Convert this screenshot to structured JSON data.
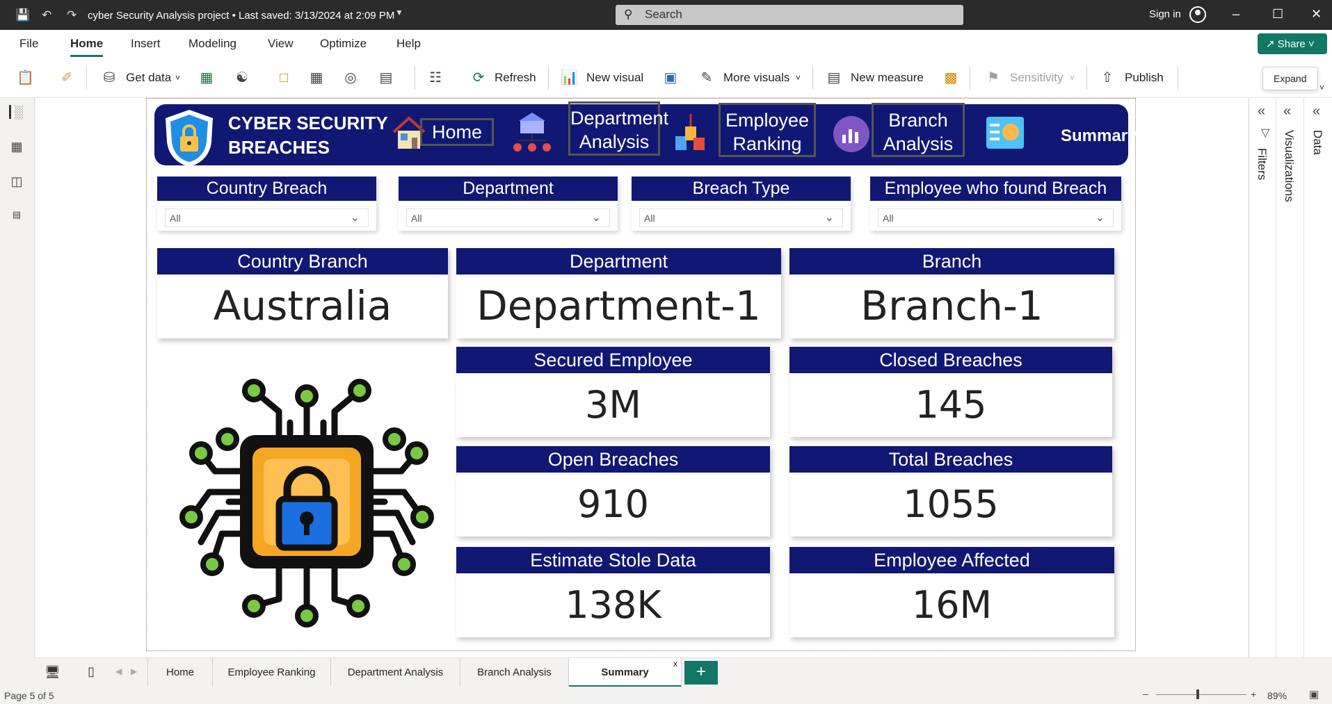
{
  "titlebar": {
    "title": "cyber Security Analysis project • Last saved: 3/13/2024 at 2:09 PM",
    "search_placeholder": "Search",
    "sign_in": "Sign in"
  },
  "menu": [
    "File",
    "Home",
    "Insert",
    "Modeling",
    "View",
    "Optimize",
    "Help"
  ],
  "share_label": "Share",
  "ribbon": {
    "get_data": "Get data",
    "refresh": "Refresh",
    "new_visual": "New visual",
    "more_visuals": "More visuals",
    "new_measure": "New measure",
    "sensitivity": "Sensitivity",
    "publish": "Publish"
  },
  "tooltip": "Expand",
  "panes": {
    "filters": "Filters",
    "visualizations": "Visualizations",
    "data": "Data"
  },
  "report": {
    "brand_line1": "CYBER SECURITY",
    "brand_line2": "BREACHES",
    "nav": {
      "home": "Home",
      "department_line1": "Department",
      "department_line2": "Analysis",
      "employee_line1": "Employee",
      "employee_line2": "Ranking",
      "branch_line1": "Branch",
      "branch_line2": "Analysis",
      "summary": "Summary"
    },
    "slicers": [
      {
        "title": "Country Breach",
        "value": "All"
      },
      {
        "title": "Department",
        "value": "All"
      },
      {
        "title": "Breach Type",
        "value": "All"
      },
      {
        "title": "Employee who found Breach",
        "value": "All"
      }
    ],
    "cards": {
      "country_branch": {
        "title": "Country Branch",
        "value": "Australia"
      },
      "department": {
        "title": "Department",
        "value": "Department-1"
      },
      "branch": {
        "title": "Branch",
        "value": "Branch-1"
      },
      "secured_employee": {
        "title": "Secured Employee",
        "value": "3M"
      },
      "closed_breaches": {
        "title": "Closed Breaches",
        "value": "145"
      },
      "open_breaches": {
        "title": "Open Breaches",
        "value": "910"
      },
      "total_breaches": {
        "title": "Total Breaches",
        "value": "1055"
      },
      "estimate_stole_data": {
        "title": "Estimate Stole Data",
        "value": "138K"
      },
      "employee_affected": {
        "title": "Employee Affected",
        "value": "16M"
      }
    }
  },
  "tabs": {
    "home": "Home",
    "employee_ranking": "Employee Ranking",
    "department_analysis": "Department Analysis",
    "branch_analysis": "Branch Analysis",
    "summary": "Summary",
    "add": "+",
    "close": "x"
  },
  "status": {
    "page": "Page 5 of 5",
    "zoom": "89%"
  },
  "colors": {
    "navy": "#101873",
    "accent": "#117865"
  }
}
